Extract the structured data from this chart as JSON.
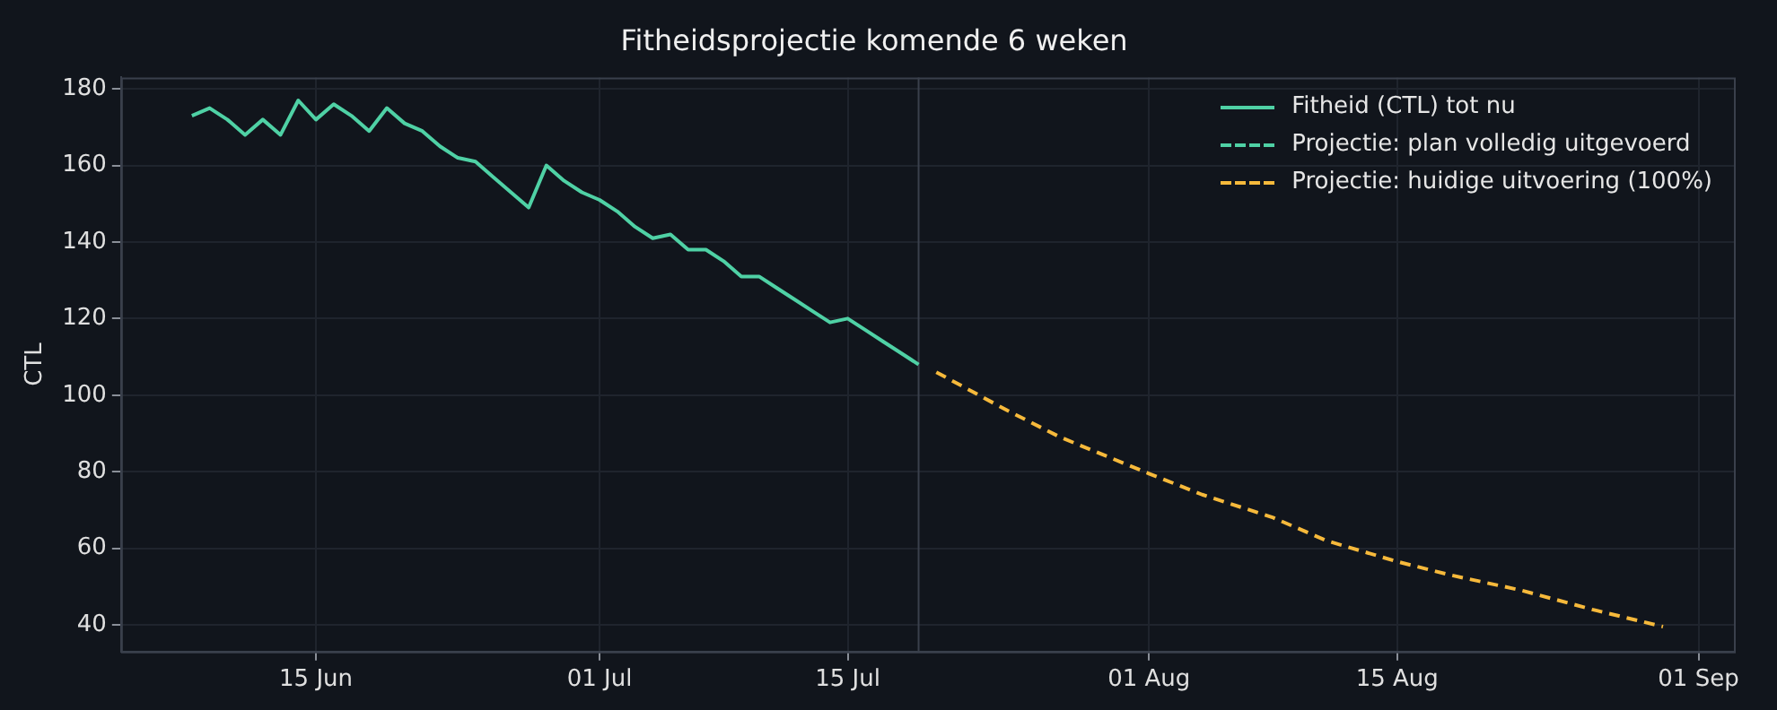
{
  "chart_data": {
    "type": "line",
    "title": "Fitheidsprojectie komende 6 weken",
    "ylabel": "CTL",
    "xlim": [
      "--06-04",
      "--09-03"
    ],
    "xticks": [
      {
        "value": "--06-15",
        "label": "15 Jun"
      },
      {
        "value": "--07-01",
        "label": "01 Jul"
      },
      {
        "value": "--07-15",
        "label": "15 Jul"
      },
      {
        "value": "--08-01",
        "label": "01 Aug"
      },
      {
        "value": "--08-15",
        "label": "15 Aug"
      },
      {
        "value": "--09-01",
        "label": "01 Sep"
      }
    ],
    "ylim": [
      33,
      183
    ],
    "yticks": [
      40,
      60,
      80,
      100,
      120,
      140,
      160,
      180
    ],
    "grid": true,
    "legend": "top right",
    "ref_lines": [
      {
        "axis": "x",
        "value": "--07-19",
        "color": "#3a404c"
      }
    ],
    "series": [
      {
        "name": "Fitheid (CTL) tot nu",
        "color": "#4fd1a5",
        "line_style": "solid",
        "x": [
          "--06-08",
          "--06-09",
          "--06-10",
          "--06-11",
          "--06-12",
          "--06-13",
          "--06-14",
          "--06-15",
          "--06-16",
          "--06-17",
          "--06-18",
          "--06-19",
          "--06-20",
          "--06-21",
          "--06-22",
          "--06-23",
          "--06-24",
          "--06-25",
          "--06-26",
          "--06-27",
          "--06-28",
          "--06-29",
          "--06-30",
          "--07-01",
          "--07-02",
          "--07-03",
          "--07-04",
          "--07-05",
          "--07-06",
          "--07-07",
          "--07-08",
          "--07-09",
          "--07-10",
          "--07-11",
          "--07-12",
          "--07-13",
          "--07-14",
          "--07-15",
          "--07-16",
          "--07-17",
          "--07-18",
          "--07-19"
        ],
        "values": [
          173,
          175,
          172,
          168,
          172,
          168,
          177,
          172,
          176,
          173,
          169,
          175,
          171,
          169,
          165,
          162,
          161,
          157,
          153,
          149,
          160,
          156,
          153,
          151,
          148,
          144,
          141,
          142,
          138,
          138,
          135,
          131,
          131,
          128,
          125,
          122,
          119,
          120,
          117,
          114,
          111,
          108
        ]
      },
      {
        "name": "Projectie: plan volledig uitgevoerd",
        "color": "#4fd1a5",
        "line_style": "dashed"
      },
      {
        "name": "Projectie: huidige uitvoering (100%)",
        "color": "#f6b93b",
        "line_style": "dashed",
        "x": [
          "--07-20",
          "--07-24",
          "--07-27",
          "--08-01",
          "--08-04",
          "--08-08",
          "--08-11",
          "--08-15",
          "--08-18",
          "--08-22",
          "--08-26",
          "--08-30"
        ],
        "values": [
          106,
          96,
          89,
          79.5,
          74,
          68,
          62,
          56.5,
          53,
          49,
          44,
          39.5
        ]
      }
    ]
  }
}
